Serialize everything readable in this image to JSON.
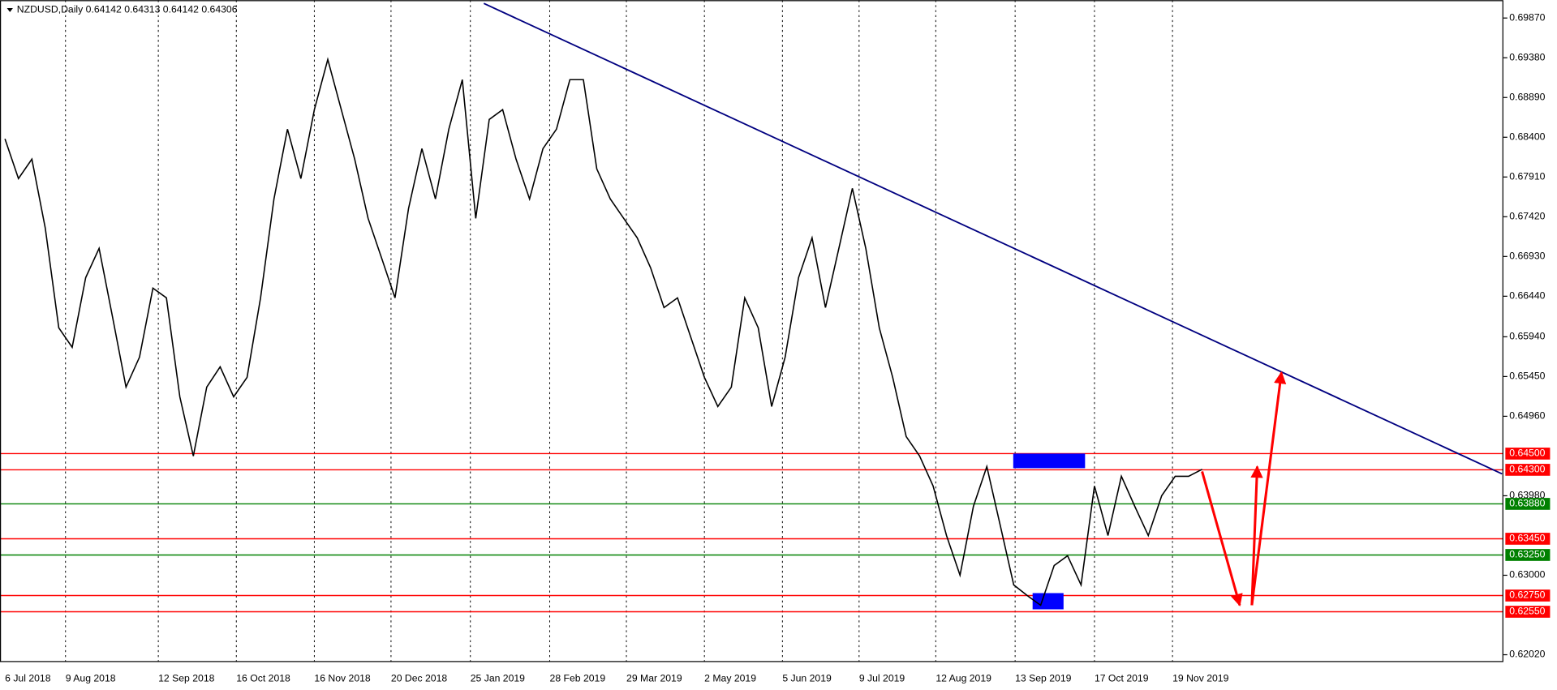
{
  "chart_data": {
    "type": "line",
    "title": "NZDUSD,Daily  0.64142 0.64313 0.64142 0.64306",
    "color": "#000000",
    "values": [
      0.6838,
      0.6789,
      0.6813,
      0.6728,
      0.6605,
      0.6581,
      0.6667,
      0.6703,
      0.6618,
      0.6532,
      0.6569,
      0.6654,
      0.6642,
      0.652,
      0.6447,
      0.6532,
      0.6557,
      0.652,
      0.6544,
      0.6642,
      0.6764,
      0.685,
      0.6789,
      0.6874,
      0.6936,
      0.6874,
      0.6813,
      0.674,
      0.6691,
      0.6642,
      0.6752,
      0.6826,
      0.6764,
      0.685,
      0.6911,
      0.674,
      0.6862,
      0.6874,
      0.6813,
      0.6764,
      0.6826,
      0.685,
      0.6911,
      0.6911,
      0.6801,
      0.6764,
      0.674,
      0.6716,
      0.6679,
      0.663,
      0.6642,
      0.6593,
      0.6544,
      0.6508,
      0.6532,
      0.6642,
      0.6605,
      0.6508,
      0.6569,
      0.6667,
      0.6716,
      0.663,
      0.6703,
      0.6777,
      0.6703,
      0.6605,
      0.6544,
      0.6471,
      0.6447,
      0.641,
      0.6349,
      0.63,
      0.6385,
      0.6434,
      0.6361,
      0.6288,
      0.6275,
      0.6263,
      0.6312,
      0.6324,
      0.6288,
      0.641,
      0.6349,
      0.6422,
      0.6385,
      0.6349,
      0.6398,
      0.6422,
      0.6422,
      0.64306
    ],
    "xlim": [
      -0.37,
      111.4
    ],
    "ylim": [
      0.6193,
      0.7009
    ],
    "xticks": [
      {
        "value": 0,
        "label": "6 Jul 2018"
      },
      {
        "value": 4.5,
        "label": "9 Aug 2018"
      },
      {
        "value": 11.4,
        "label": "12 Sep 2018"
      },
      {
        "value": 17.2,
        "label": "16 Oct 2018"
      },
      {
        "value": 23.0,
        "label": "16 Nov 2018"
      },
      {
        "value": 28.7,
        "label": "20 Dec 2018"
      },
      {
        "value": 34.6,
        "label": "25 Jan 2019"
      },
      {
        "value": 40.5,
        "label": "28 Feb 2019"
      },
      {
        "value": 46.2,
        "label": "29 Mar 2019"
      },
      {
        "value": 52.0,
        "label": "2 May 2019"
      },
      {
        "value": 57.8,
        "label": "5 Jun 2019"
      },
      {
        "value": 63.5,
        "label": "9 Jul 2019"
      },
      {
        "value": 69.2,
        "label": "12 Aug 2019"
      },
      {
        "value": 75.1,
        "label": "13 Sep 2019"
      },
      {
        "value": 81.0,
        "label": "17 Oct 2019"
      },
      {
        "value": 86.8,
        "label": "19 Nov 2019"
      }
    ],
    "yticks": [
      {
        "value": 0.6987,
        "label": "0.69870"
      },
      {
        "value": 0.6938,
        "label": "0.69380"
      },
      {
        "value": 0.6889,
        "label": "0.68890"
      },
      {
        "value": 0.684,
        "label": "0.68400"
      },
      {
        "value": 0.6791,
        "label": "0.67910"
      },
      {
        "value": 0.6742,
        "label": "0.67420"
      },
      {
        "value": 0.6693,
        "label": "0.66930"
      },
      {
        "value": 0.6644,
        "label": "0.66440"
      },
      {
        "value": 0.6594,
        "label": "0.65940"
      },
      {
        "value": 0.6545,
        "label": "0.65450"
      },
      {
        "value": 0.6496,
        "label": "0.64960"
      },
      {
        "value": 0.6398,
        "label": "0.63980"
      },
      {
        "value": 0.63,
        "label": "0.63000"
      },
      {
        "value": 0.6202,
        "label": "0.62020"
      }
    ],
    "grid": true,
    "levels": [
      {
        "value": 0.645,
        "label": "0.64500",
        "color": "#ff0000"
      },
      {
        "value": 0.643,
        "label": "0.64300",
        "color": "#ff0000"
      },
      {
        "value": 0.6388,
        "label": "0.63880",
        "color": "#008000"
      },
      {
        "value": 0.6345,
        "label": "0.63450",
        "color": "#ff0000"
      },
      {
        "value": 0.6325,
        "label": "0.63250",
        "color": "#008000"
      },
      {
        "value": 0.6275,
        "label": "0.62750",
        "color": "#ff0000"
      },
      {
        "value": 0.6255,
        "label": "0.62550",
        "color": "#ff0000"
      }
    ],
    "trendline": {
      "x": [
        35.6,
        111.3
      ],
      "y": [
        0.7005,
        0.6425
      ],
      "color": "#000080"
    },
    "zones": [
      {
        "x": [
          74.96,
          80.3
        ],
        "y": [
          0.6432,
          0.645
        ],
        "color": "#0000ff"
      },
      {
        "x": [
          76.4,
          78.7
        ],
        "y": [
          0.6258,
          0.6278
        ],
        "color": "#0000ff"
      }
    ],
    "arrows": [
      {
        "x": [
          89.0,
          91.8
        ],
        "y": [
          0.6428,
          0.6263
        ],
        "color": "#ff0000"
      },
      {
        "x": [
          92.7,
          93.1
        ],
        "y": [
          0.6263,
          0.6434
        ],
        "color": "#ff0000"
      },
      {
        "x": [
          92.7,
          94.9
        ],
        "y": [
          0.6263,
          0.655
        ],
        "color": "#ff0000"
      }
    ]
  }
}
